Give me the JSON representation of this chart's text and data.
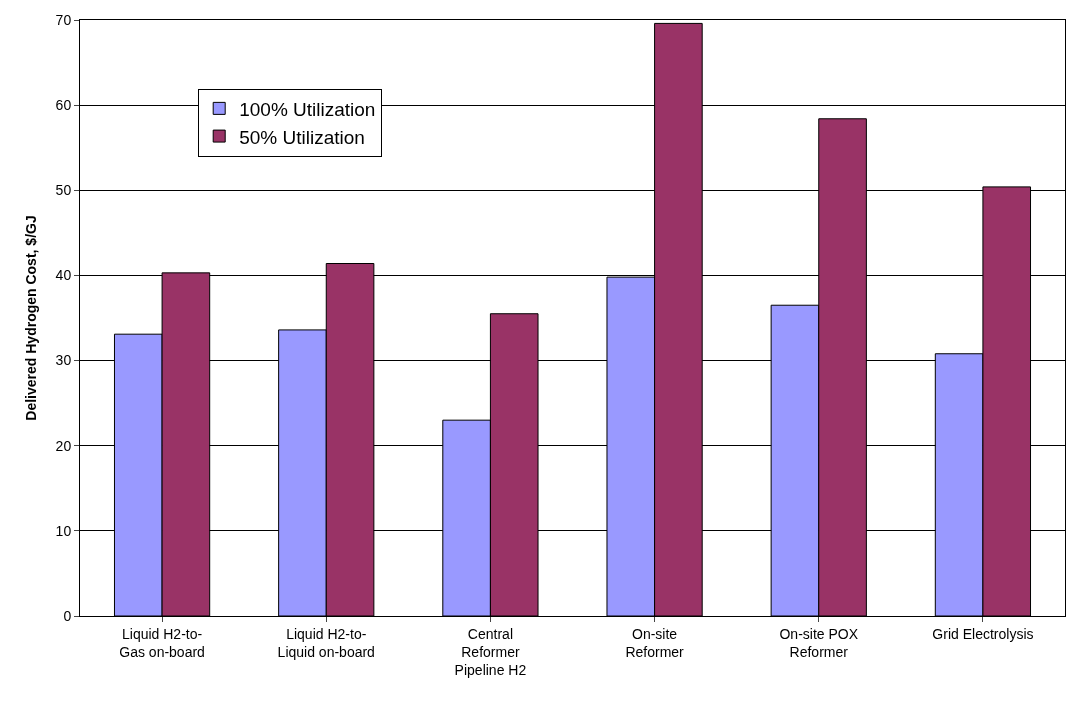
{
  "chart_data": {
    "type": "bar",
    "ylabel": "Delivered Hydrogen Cost, $/GJ",
    "categories": [
      "Liquid H2-to-\nGas on-board",
      "Liquid H2-to-\nLiquid on-board",
      "Central\nReformer\nPipeline H2",
      "On-site\nReformer",
      "On-site POX\nReformer",
      "Grid Electrolysis"
    ],
    "series": [
      {
        "name": "100% Utilization",
        "color": "#9999ff",
        "values": [
          33.1,
          33.6,
          23.0,
          39.8,
          36.5,
          30.8
        ]
      },
      {
        "name": "50% Utilization",
        "color": "#993366",
        "values": [
          40.3,
          41.4,
          35.5,
          69.6,
          58.4,
          50.4
        ]
      }
    ],
    "ylim": [
      0,
      70
    ],
    "yticks": [
      0,
      10,
      20,
      30,
      40,
      50,
      60,
      70
    ],
    "grid": "y",
    "legend": "top left"
  }
}
